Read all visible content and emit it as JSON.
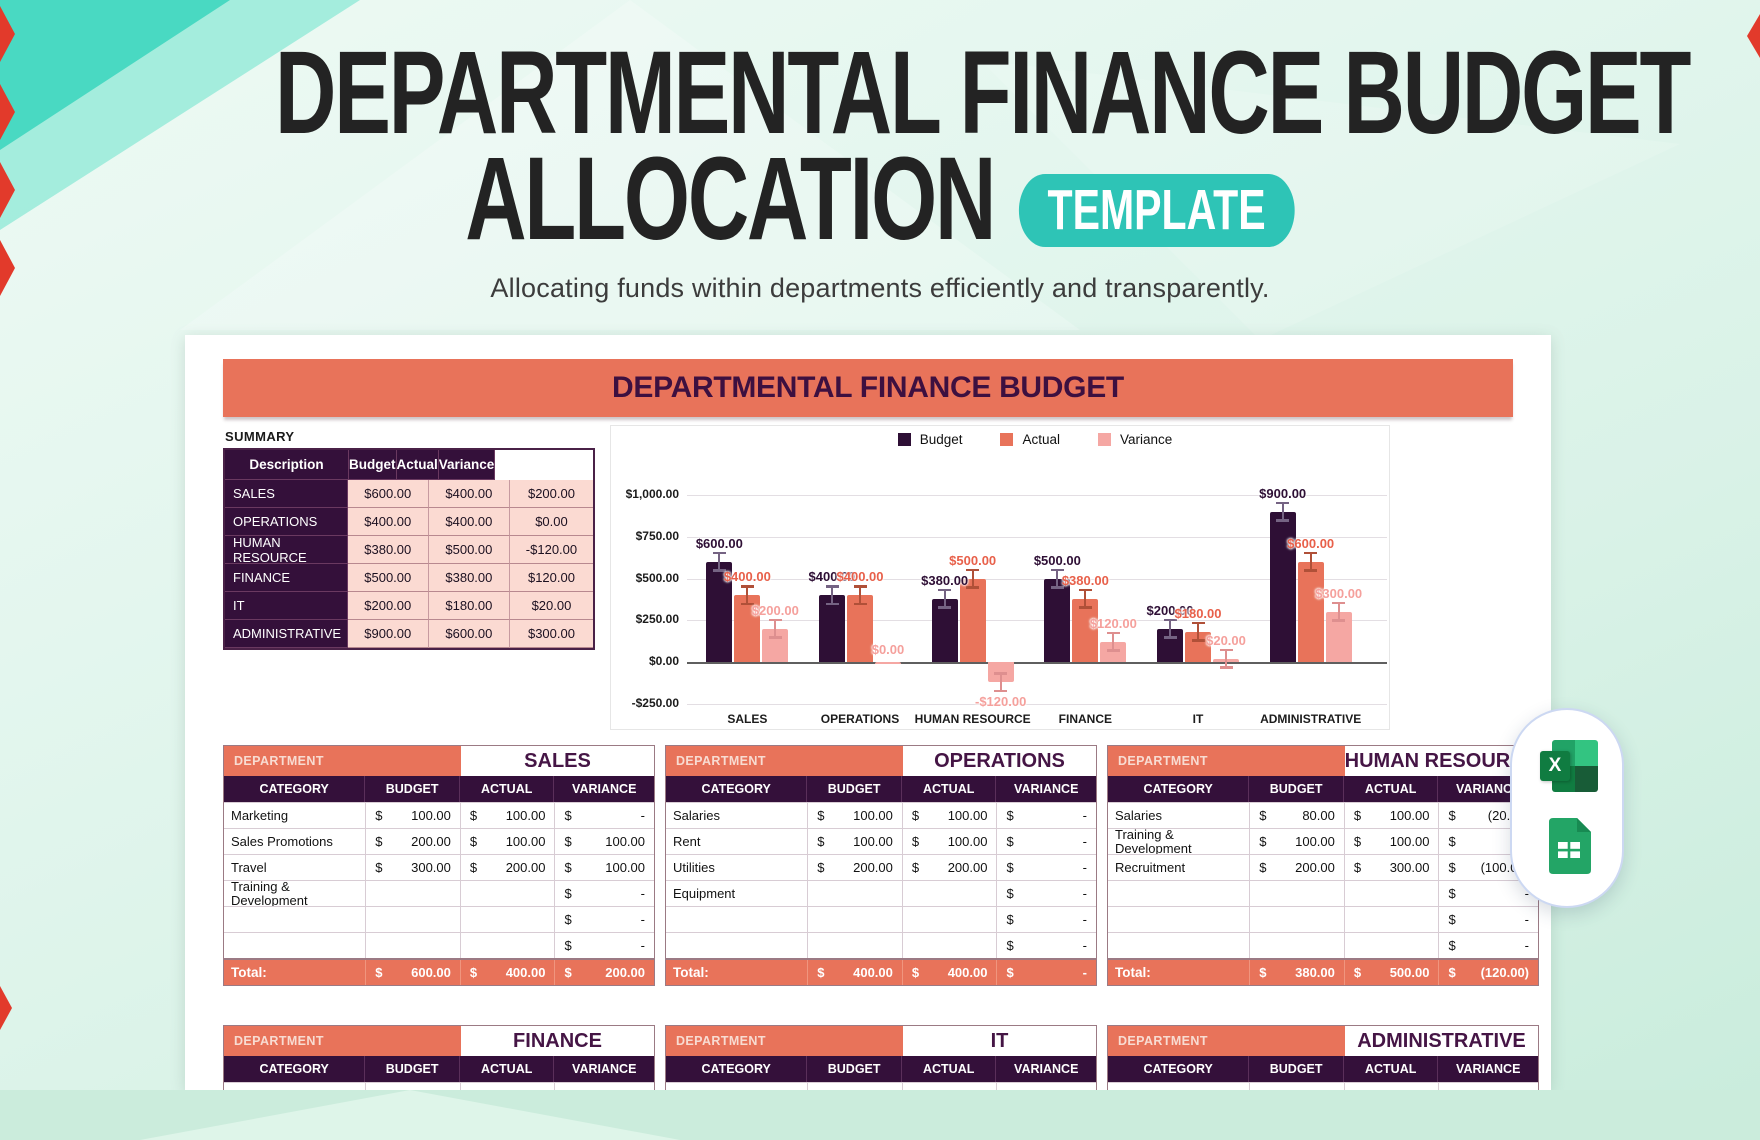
{
  "page": {
    "title_line1": "DEPARTMENTAL FINANCE BUDGET",
    "title_line2": "ALLOCATION",
    "badge": "TEMPLATE",
    "subtitle": "Allocating funds within departments efficiently and transparently."
  },
  "banner": {
    "title": "DEPARTMENTAL FINANCE BUDGET"
  },
  "colors": {
    "orange": "#E8735A",
    "dark_purple": "#34103A",
    "pink_cell": "#FBDAD2",
    "teal_badge": "#2EC4B6"
  },
  "summary": {
    "label": "SUMMARY",
    "columns": [
      "Description",
      "Budget",
      "Actual",
      "Variance"
    ],
    "rows": [
      {
        "description": "SALES",
        "budget": "$600.00",
        "actual": "$400.00",
        "variance": "$200.00"
      },
      {
        "description": "OPERATIONS",
        "budget": "$400.00",
        "actual": "$400.00",
        "variance": "$0.00"
      },
      {
        "description": "HUMAN RESOURCE",
        "budget": "$380.00",
        "actual": "$500.00",
        "variance": "-$120.00"
      },
      {
        "description": "FINANCE",
        "budget": "$500.00",
        "actual": "$380.00",
        "variance": "$120.00"
      },
      {
        "description": "IT",
        "budget": "$200.00",
        "actual": "$180.00",
        "variance": "$20.00"
      },
      {
        "description": "ADMINISTRATIVE",
        "budget": "$900.00",
        "actual": "$600.00",
        "variance": "$300.00"
      }
    ]
  },
  "chart_data": {
    "type": "bar",
    "title": "",
    "categories": [
      "SALES",
      "OPERATIONS",
      "HUMAN RESOURCE",
      "FINANCE",
      "IT",
      "ADMINISTRATIVE"
    ],
    "series": [
      {
        "name": "Budget",
        "color": "#2E0F35",
        "values": [
          600,
          400,
          380,
          500,
          200,
          900
        ]
      },
      {
        "name": "Actual",
        "color": "#E8735A",
        "values": [
          400,
          400,
          500,
          380,
          180,
          600
        ]
      },
      {
        "name": "Variance",
        "color": "#F5A7A3",
        "values": [
          200,
          0,
          -120,
          120,
          20,
          300
        ]
      }
    ],
    "label_colors": [
      "#2E0F35",
      "#E8604A",
      "#F5A09C"
    ],
    "whisker_colors": [
      "#756383",
      "#B05038",
      "#DE8F8F"
    ],
    "y_ticks": [
      "$1,000.00",
      "$750.00",
      "$500.00",
      "$250.00",
      "$0.00",
      "-$250.00"
    ],
    "tick_values": [
      1000,
      750,
      500,
      250,
      0,
      -250
    ],
    "ylim": [
      -250,
      1000
    ],
    "grid": true,
    "legend_position": "top",
    "error_bars": true,
    "data_labels": true
  },
  "dept_common": {
    "dept_label": "DEPARTMENT",
    "columns": [
      "CATEGORY",
      "BUDGET",
      "ACTUAL",
      "VARIANCE"
    ],
    "total_label": "Total:"
  },
  "departments": [
    {
      "name": "SALES",
      "rows": [
        {
          "category": "Marketing",
          "budget": "100.00",
          "actual": "100.00",
          "variance": "-"
        },
        {
          "category": "Sales Promotions",
          "budget": "200.00",
          "actual": "100.00",
          "variance": "100.00"
        },
        {
          "category": "Travel",
          "budget": "300.00",
          "actual": "200.00",
          "variance": "100.00"
        },
        {
          "category": "Training & Development",
          "budget": "",
          "actual": "",
          "variance": "-"
        },
        {
          "category": "",
          "budget": "",
          "actual": "",
          "variance": "-"
        },
        {
          "category": "",
          "budget": "",
          "actual": "",
          "variance": "-"
        }
      ],
      "total": {
        "budget": "600.00",
        "actual": "400.00",
        "variance": "200.00"
      }
    },
    {
      "name": "OPERATIONS",
      "rows": [
        {
          "category": "Salaries",
          "budget": "100.00",
          "actual": "100.00",
          "variance": "-"
        },
        {
          "category": "Rent",
          "budget": "100.00",
          "actual": "100.00",
          "variance": "-"
        },
        {
          "category": "Utilities",
          "budget": "200.00",
          "actual": "200.00",
          "variance": "-"
        },
        {
          "category": "Equipment",
          "budget": "",
          "actual": "",
          "variance": "-"
        },
        {
          "category": "",
          "budget": "",
          "actual": "",
          "variance": "-"
        },
        {
          "category": "",
          "budget": "",
          "actual": "",
          "variance": "-"
        }
      ],
      "total": {
        "budget": "400.00",
        "actual": "400.00",
        "variance": "-"
      }
    },
    {
      "name": "HUMAN RESOURCE",
      "rows": [
        {
          "category": "Salaries",
          "budget": "80.00",
          "actual": "100.00",
          "variance": "(20.00)"
        },
        {
          "category": "Training & Development",
          "budget": "100.00",
          "actual": "100.00",
          "variance": "-"
        },
        {
          "category": "Recruitment",
          "budget": "200.00",
          "actual": "300.00",
          "variance": "(100.00)"
        },
        {
          "category": "",
          "budget": "",
          "actual": "",
          "variance": "-"
        },
        {
          "category": "",
          "budget": "",
          "actual": "",
          "variance": "-"
        },
        {
          "category": "",
          "budget": "",
          "actual": "",
          "variance": "-"
        }
      ],
      "total": {
        "budget": "380.00",
        "actual": "500.00",
        "variance": "(120.00)"
      }
    }
  ],
  "departments_bottom": [
    {
      "name": "FINANCE"
    },
    {
      "name": "IT"
    },
    {
      "name": "ADMINISTRATIVE"
    }
  ],
  "icons": {
    "excel_letter": "X",
    "excel_icon": "excel-icon",
    "sheets_icon": "google-sheets-icon"
  }
}
